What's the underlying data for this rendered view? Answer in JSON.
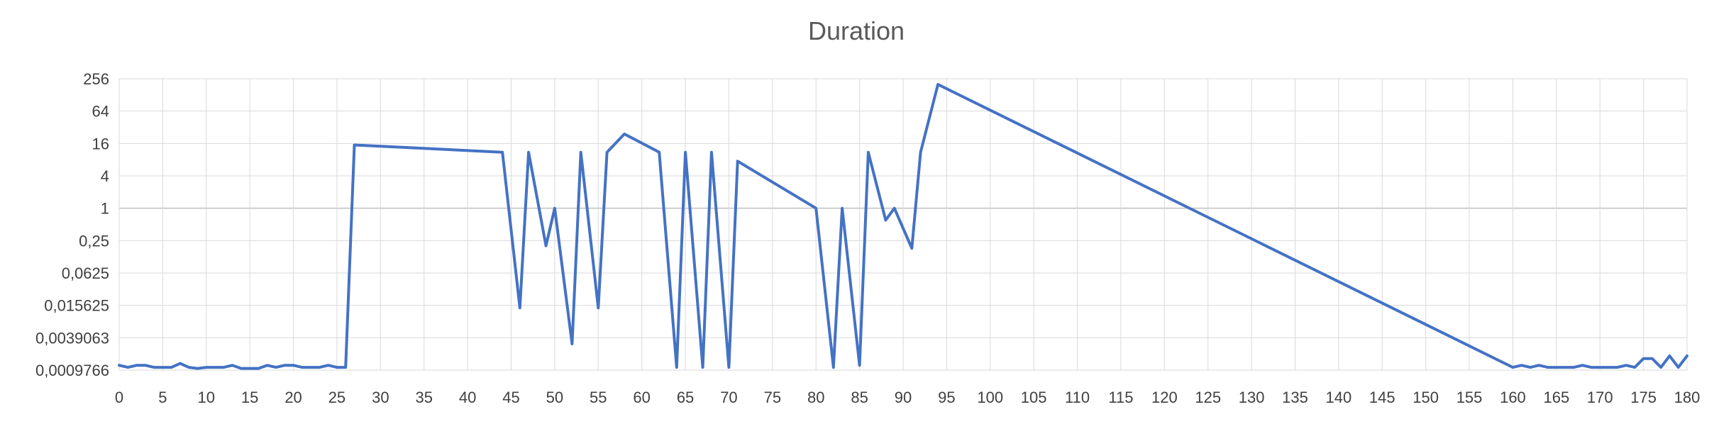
{
  "chart_data": {
    "type": "line",
    "title": "Duration",
    "xlabel": "",
    "ylabel": "",
    "scale": {
      "y": "log2"
    },
    "xlim": [
      0,
      180
    ],
    "ylim": [
      0.0009765625,
      256
    ],
    "x_ticks": [
      0,
      5,
      10,
      15,
      20,
      25,
      30,
      35,
      40,
      45,
      50,
      55,
      60,
      65,
      70,
      75,
      80,
      85,
      90,
      95,
      100,
      105,
      110,
      115,
      120,
      125,
      130,
      135,
      140,
      145,
      150,
      155,
      160,
      165,
      170,
      175,
      180
    ],
    "x_tick_labels": [
      "0",
      "5",
      "10",
      "15",
      "20",
      "25",
      "30",
      "35",
      "40",
      "45",
      "50",
      "55",
      "60",
      "65",
      "70",
      "75",
      "80",
      "85",
      "90",
      "95",
      "100",
      "105",
      "110",
      "115",
      "120",
      "125",
      "130",
      "135",
      "140",
      "145",
      "150",
      "155",
      "160",
      "165",
      "170",
      "175",
      "180"
    ],
    "y_ticks": [
      0.0009765625,
      0.00390625,
      0.015625,
      0.0625,
      0.25,
      1,
      4,
      16,
      64,
      256
    ],
    "y_tick_labels": [
      "0,0009766",
      "0,0039063",
      "0,015625",
      "0,0625",
      "0,25",
      "1",
      "4",
      "16",
      "64",
      "256"
    ],
    "grid": true,
    "legend": "none",
    "colors": {
      "line": "#4472C4",
      "grid": "#D9D9D9",
      "axis": "#BFBFBF"
    },
    "series": [
      {
        "x": [
          0,
          1,
          2,
          3,
          4,
          5,
          6,
          7,
          8,
          9,
          10,
          11,
          12,
          13,
          14,
          15,
          16,
          17,
          18,
          19,
          20,
          21,
          22,
          23,
          24,
          25,
          26,
          27,
          44,
          46,
          47,
          49,
          50,
          52,
          53,
          55,
          56,
          58,
          62,
          64,
          65,
          67,
          68,
          70,
          71,
          80,
          82,
          83,
          85,
          86,
          88,
          89,
          91,
          92,
          94,
          160,
          161,
          162,
          163,
          164,
          165,
          166,
          167,
          168,
          169,
          170,
          171,
          172,
          173,
          174,
          175,
          176,
          177,
          178,
          179,
          180
        ],
        "values": [
          0.0012,
          0.0011,
          0.0012,
          0.0012,
          0.0011,
          0.0011,
          0.0011,
          0.0013,
          0.0011,
          0.00105,
          0.0011,
          0.0011,
          0.0011,
          0.0012,
          0.00105,
          0.00105,
          0.00105,
          0.0012,
          0.0011,
          0.0012,
          0.0012,
          0.0011,
          0.0011,
          0.0011,
          0.0012,
          0.0011,
          0.0011,
          15,
          11,
          0.014,
          11,
          0.2,
          1,
          0.003,
          11,
          0.014,
          11,
          24,
          11,
          0.0011,
          11,
          0.0011,
          11,
          0.0011,
          7.5,
          1,
          0.0011,
          1,
          0.0012,
          11,
          0.6,
          1,
          0.18,
          11,
          200,
          0.0011,
          0.0012,
          0.0011,
          0.0012,
          0.0011,
          0.0011,
          0.0011,
          0.0011,
          0.0012,
          0.0011,
          0.0011,
          0.0011,
          0.0011,
          0.0012,
          0.0011,
          0.0016,
          0.0016,
          0.0011,
          0.0018,
          0.0011,
          0.0018
        ]
      }
    ]
  }
}
